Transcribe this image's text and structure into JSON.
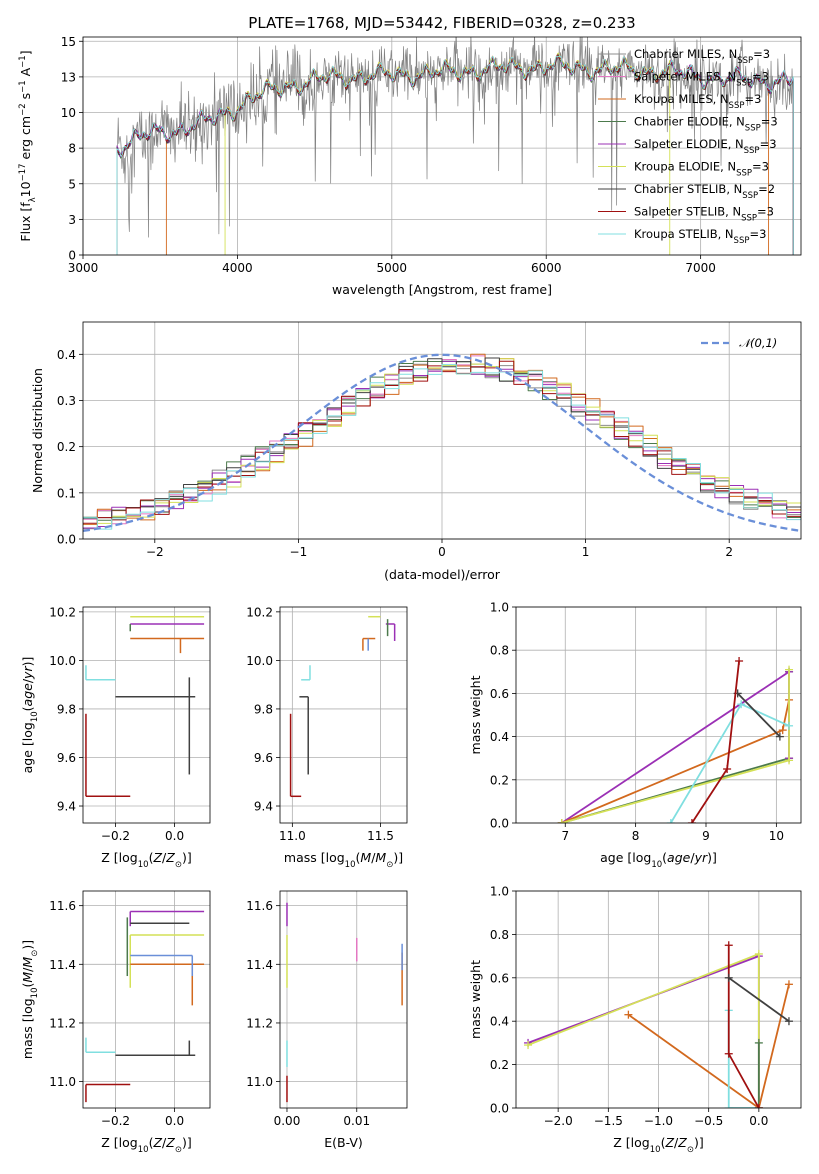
{
  "colors": {
    "Chabrier MILES": "#8c8c8c",
    "Salpeter MILES": "#e377c2",
    "Kroupa MILES": "#d2691e",
    "Chabrier ELODIE": "#4c7a4c",
    "Salpeter ELODIE": "#9b30b5",
    "Kroupa ELODIE": "#d4e157",
    "Chabrier STELIB": "#404040",
    "Salpeter STELIB": "#a01010",
    "Kroupa STELIB": "#80dfe0",
    "extra": "#6a8fd8"
  },
  "chart_data": [
    {
      "id": "spectrum",
      "type": "line",
      "title": "PLATE=1768, MJD=53442, FIBERID=0328, z=0.233",
      "xlabel": "wavelength [Angstrom, rest frame]",
      "ylabel": "Flux [fλ10⁻¹⁷ erg cm⁻² s⁻¹ A⁻¹]",
      "xlim": [
        3000,
        7650
      ],
      "ylim": [
        0,
        15.3
      ],
      "xticks": [
        3000,
        4000,
        5000,
        6000,
        7000
      ],
      "yticks": [
        0.0,
        2.5,
        5.0,
        7.5,
        10.0,
        12.5,
        15.0
      ],
      "legend_position": "right",
      "legend": [
        "Chabrier MILES, N_SSP=3",
        "Salpeter MILES, N_SSP=3",
        "Kroupa MILES, N_SSP=3",
        "Chabrier ELODIE, N_SSP=3",
        "Salpeter ELODIE, N_SSP=3",
        "Kroupa ELODIE, N_SSP=3",
        "Chabrier STELIB, N_SSP=2",
        "Salpeter STELIB, N_SSP=3",
        "Kroupa STELIB, N_SSP=3"
      ],
      "continuum": {
        "x": [
          3220,
          3300,
          3400,
          3500,
          3600,
          3700,
          3800,
          3900,
          4000,
          4100,
          4200,
          4300,
          4400,
          4500,
          4600,
          4800,
          5000,
          5200,
          5400,
          5600,
          5800,
          6000,
          6200,
          6400,
          6600,
          6800,
          7000,
          7200,
          7400
        ],
        "y": [
          7.5,
          7.9,
          8.3,
          8.6,
          8.7,
          9.0,
          9.3,
          9.8,
          10.4,
          11.0,
          11.4,
          11.8,
          12.0,
          12.2,
          12.4,
          12.5,
          12.6,
          12.7,
          12.8,
          13.0,
          13.1,
          13.2,
          13.1,
          13.0,
          12.9,
          12.8,
          12.5,
          12.3,
          12.2
        ]
      },
      "data_noise_amplitude": 1.4,
      "spectrum_starts": {
        "default": 3220,
        "Kroupa MILES": 3540,
        "Kroupa ELODIE": 3920
      },
      "spectrum_ends": {
        "default": 7600,
        "Kroupa ELODIE": 6800,
        "Kroupa MILES": 7440
      }
    },
    {
      "id": "residuals",
      "type": "histogram",
      "xlabel": "(data-model)/error",
      "ylabel": "Normed distribution",
      "xlim": [
        -2.5,
        2.5
      ],
      "ylim": [
        0,
        0.47
      ],
      "xticks": [
        -2,
        -1,
        0,
        1,
        2
      ],
      "yticks": [
        0.0,
        0.1,
        0.2,
        0.3,
        0.4
      ],
      "reference": {
        "name": "𝒩(0,1)",
        "mean": 0,
        "sigma": 1
      },
      "legend_position": "top-right",
      "bin_width": 0.1,
      "bin_start": -2.5
    },
    {
      "id": "age-vs-Z",
      "type": "errorbar",
      "xlabel": "Z [log₁₀(Z/Z⊙)]",
      "ylabel": "age  [log₁₀(age/yr)]",
      "xlim": [
        -0.31,
        0.12
      ],
      "ylim": [
        9.33,
        10.22
      ],
      "xticks": [
        -0.2,
        0.0
      ],
      "yticks": [
        9.4,
        9.6,
        9.8,
        10.0,
        10.2
      ],
      "points": [
        {
          "model": "Kroupa ELODIE",
          "x": -0.05,
          "xerr": [
            0.1,
            0.15
          ],
          "y": 10.18,
          "yerr": [
            0.0,
            0.0
          ]
        },
        {
          "model": "Salpeter ELODIE",
          "x": -0.15,
          "xerr": [
            0.0,
            0.25
          ],
          "y": 10.15,
          "yerr": [
            0.02,
            0.0
          ]
        },
        {
          "model": "Chabrier ELODIE",
          "x": -0.15,
          "xerr": [
            0.0,
            0.0
          ],
          "y": 10.15,
          "yerr": [
            0.03,
            0.0
          ]
        },
        {
          "model": "Kroupa MILES",
          "x": 0.02,
          "xerr": [
            0.17,
            0.08
          ],
          "y": 10.09,
          "yerr": [
            0.06,
            0.0
          ]
        },
        {
          "model": "Kroupa STELIB",
          "x": -0.3,
          "xerr": [
            0.0,
            0.1
          ],
          "y": 9.92,
          "yerr": [
            0.0,
            0.06
          ]
        },
        {
          "model": "Chabrier STELIB",
          "x": 0.05,
          "xerr": [
            0.25,
            0.02
          ],
          "y": 9.85,
          "yerr": [
            0.32,
            0.08
          ]
        },
        {
          "model": "Salpeter STELIB",
          "x": -0.3,
          "xerr": [
            0.0,
            0.15
          ],
          "y": 9.44,
          "yerr": [
            0.0,
            0.34
          ]
        }
      ]
    },
    {
      "id": "age-vs-mass",
      "type": "errorbar",
      "xlabel": "mass [log₁₀(M/M⊙)]",
      "ylabel": "",
      "xlim": [
        10.93,
        11.65
      ],
      "ylim": [
        9.33,
        10.22
      ],
      "xticks": [
        11.0,
        11.5
      ],
      "yticks": [
        9.4,
        9.6,
        9.8,
        10.0,
        10.2
      ],
      "points": [
        {
          "model": "Kroupa ELODIE",
          "x": 11.5,
          "xerr": [
            0.07,
            0.0
          ],
          "y": 10.18,
          "yerr": [
            0.0,
            0.0
          ]
        },
        {
          "model": "Salpeter ELODIE",
          "x": 11.58,
          "xerr": [
            0.05,
            0.0
          ],
          "y": 10.15,
          "yerr": [
            0.07,
            0.0
          ]
        },
        {
          "model": "Chabrier ELODIE",
          "x": 11.54,
          "xerr": [
            0.0,
            0.0
          ],
          "y": 10.15,
          "yerr": [
            0.05,
            0.02
          ]
        },
        {
          "model": "Kroupa MILES",
          "x": 11.4,
          "xerr": [
            0.0,
            0.07
          ],
          "y": 10.09,
          "yerr": [
            0.05,
            0.0
          ]
        },
        {
          "model": "extra",
          "x": 11.43,
          "xerr": [
            0.0,
            0.0
          ],
          "y": 10.09,
          "yerr": [
            0.05,
            0.0
          ]
        },
        {
          "model": "Kroupa STELIB",
          "x": 11.1,
          "xerr": [
            0.05,
            0.0
          ],
          "y": 9.92,
          "yerr": [
            0.0,
            0.06
          ]
        },
        {
          "model": "Chabrier STELIB",
          "x": 11.09,
          "xerr": [
            0.05,
            0.0
          ],
          "y": 9.85,
          "yerr": [
            0.32,
            0.0
          ]
        },
        {
          "model": "Salpeter STELIB",
          "x": 10.99,
          "xerr": [
            0.0,
            0.06
          ],
          "y": 9.44,
          "yerr": [
            0.0,
            0.34
          ]
        }
      ]
    },
    {
      "id": "mass-weight-vs-age",
      "type": "line",
      "xlabel": "age  [log₁₀(age/yr)]",
      "ylabel": "mass weight",
      "xlim": [
        6.3,
        10.35
      ],
      "ylim": [
        0,
        1.0
      ],
      "xticks": [
        7,
        8,
        9,
        10
      ],
      "yticks": [
        0.0,
        0.2,
        0.4,
        0.6,
        0.8,
        1.0
      ],
      "series": [
        {
          "model": "Chabrier ELODIE",
          "x": [
            6.95,
            10.18,
            10.18
          ],
          "y": [
            0.0,
            0.3,
            0.7
          ]
        },
        {
          "model": "Salpeter ELODIE",
          "x": [
            6.95,
            10.18,
            10.18
          ],
          "y": [
            0.0,
            0.7,
            0.3
          ]
        },
        {
          "model": "Kroupa MILES",
          "x": [
            6.95,
            10.09,
            10.18
          ],
          "y": [
            0.0,
            0.43,
            0.57
          ]
        },
        {
          "model": "Kroupa ELODIE",
          "x": [
            6.95,
            10.18,
            10.18
          ],
          "y": [
            0.0,
            0.29,
            0.71
          ]
        },
        {
          "model": "Kroupa STELIB",
          "x": [
            8.5,
            9.5,
            10.18
          ],
          "y": [
            0.0,
            0.55,
            0.45
          ]
        },
        {
          "model": "Chabrier STELIB",
          "x": [
            9.45,
            10.05
          ],
          "y": [
            0.6,
            0.4
          ]
        },
        {
          "model": "Salpeter STELIB",
          "x": [
            8.8,
            9.3,
            9.47
          ],
          "y": [
            0.0,
            0.25,
            0.75
          ]
        }
      ]
    },
    {
      "id": "mass-vs-Z",
      "type": "errorbar",
      "xlabel": "Z [log₁₀(Z/Z⊙)]",
      "ylabel": "mass [log₁₀(M/M⊙)]",
      "xlim": [
        -0.31,
        0.12
      ],
      "ylim": [
        10.91,
        11.65
      ],
      "xticks": [
        -0.2,
        0.0
      ],
      "yticks": [
        11.0,
        11.2,
        11.4,
        11.6
      ],
      "points": [
        {
          "model": "Salpeter ELODIE",
          "x": -0.15,
          "xerr": [
            0.0,
            0.25
          ],
          "y": 11.58,
          "yerr": [
            0.05,
            0.0
          ]
        },
        {
          "model": "Chabrier STELIB",
          "x": -0.15,
          "xerr": [
            0.0,
            0.2
          ],
          "y": 11.54,
          "yerr": [
            0.0,
            0.0
          ]
        },
        {
          "model": "Kroupa ELODIE",
          "x": -0.15,
          "xerr": [
            0.0,
            0.25
          ],
          "y": 11.5,
          "yerr": [
            0.18,
            0.0
          ]
        },
        {
          "model": "Kroupa MILES",
          "x": 0.06,
          "xerr": [
            0.21,
            0.04
          ],
          "y": 11.4,
          "yerr": [
            0.14,
            0.0
          ]
        },
        {
          "model": "extra",
          "x": 0.06,
          "xerr": [
            0.21,
            0.0
          ],
          "y": 11.43,
          "yerr": [
            0.07,
            0.0
          ]
        },
        {
          "model": "Chabrier ELODIE",
          "x": -0.16,
          "xerr": [
            0.0,
            0.0
          ],
          "y": 11.46,
          "yerr": [
            0.1,
            0.1
          ]
        },
        {
          "model": "Kroupa STELIB",
          "x": -0.3,
          "xerr": [
            0.0,
            0.1
          ],
          "y": 11.1,
          "yerr": [
            0.0,
            0.05
          ]
        },
        {
          "model": "Chabrier STELIB",
          "x": 0.05,
          "xerr": [
            0.25,
            0.02
          ],
          "y": 11.09,
          "yerr": [
            0.0,
            0.05
          ]
        },
        {
          "model": "Salpeter STELIB",
          "x": -0.3,
          "xerr": [
            0.0,
            0.15
          ],
          "y": 10.99,
          "yerr": [
            0.06,
            0.0
          ]
        }
      ]
    },
    {
      "id": "mass-vs-ebv",
      "type": "errorbar",
      "xlabel": "E(B-V)",
      "ylabel": "",
      "xlim": [
        -0.001,
        0.0172
      ],
      "ylim": [
        10.91,
        11.65
      ],
      "xticks": [
        0.0,
        0.01
      ],
      "yticks": [
        11.0,
        11.2,
        11.4,
        11.6
      ],
      "points": [
        {
          "model": "Salpeter ELODIE",
          "x": 0.0,
          "xerr": [
            0,
            0
          ],
          "y": 11.58,
          "yerr": [
            0.05,
            0.03
          ]
        },
        {
          "model": "Kroupa ELODIE",
          "x": 0.0,
          "xerr": [
            0,
            0
          ],
          "y": 11.45,
          "yerr": [
            0.13,
            0.05
          ]
        },
        {
          "model": "Salpeter MILES",
          "x": 0.01,
          "xerr": [
            0,
            0
          ],
          "y": 11.45,
          "yerr": [
            0.04,
            0.04
          ]
        },
        {
          "model": "Kroupa MILES",
          "x": 0.0165,
          "xerr": [
            0,
            0
          ],
          "y": 11.36,
          "yerr": [
            0.1,
            0.08
          ]
        },
        {
          "model": "extra",
          "x": 0.0165,
          "xerr": [
            0,
            0
          ],
          "y": 11.43,
          "yerr": [
            0.05,
            0.04
          ]
        },
        {
          "model": "Kroupa STELIB",
          "x": 0.0,
          "xerr": [
            0,
            0
          ],
          "y": 11.1,
          "yerr": [
            0.05,
            0.04
          ]
        },
        {
          "model": "Salpeter STELIB",
          "x": 0.0,
          "xerr": [
            0,
            0
          ],
          "y": 10.99,
          "yerr": [
            0.06,
            0.03
          ]
        }
      ]
    },
    {
      "id": "mass-weight-vs-Z",
      "type": "line",
      "xlabel": "Z [log₁₀(Z/Z⊙)]",
      "ylabel": "mass weight",
      "xlim": [
        -2.42,
        0.42
      ],
      "ylim": [
        0,
        1.0
      ],
      "xticks": [
        -2.0,
        -1.5,
        -1.0,
        -0.5,
        0.0
      ],
      "yticks": [
        0.0,
        0.2,
        0.4,
        0.6,
        0.8,
        1.0
      ],
      "series": [
        {
          "model": "Salpeter ELODIE",
          "x": [
            -2.3,
            0.0,
            0.0
          ],
          "y": [
            0.3,
            0.7,
            0.0
          ]
        },
        {
          "model": "Kroupa ELODIE",
          "x": [
            -2.3,
            0.0,
            0.0
          ],
          "y": [
            0.29,
            0.71,
            0.0
          ]
        },
        {
          "model": "Chabrier ELODIE",
          "x": [
            0.0,
            0.0
          ],
          "y": [
            0.0,
            0.3
          ]
        },
        {
          "model": "Kroupa MILES",
          "x": [
            -1.3,
            0.0,
            0.3
          ],
          "y": [
            0.43,
            0.0,
            0.57
          ]
        },
        {
          "model": "Kroupa STELIB",
          "x": [
            -0.3,
            -0.3,
            0.0
          ],
          "y": [
            0.45,
            0.0,
            0.0
          ]
        },
        {
          "model": "Salpeter STELIB",
          "x": [
            -0.3,
            -0.3,
            0.0
          ],
          "y": [
            0.75,
            0.25,
            0.0
          ]
        },
        {
          "model": "Chabrier STELIB",
          "x": [
            -0.3,
            0.3
          ],
          "y": [
            0.6,
            0.4
          ]
        }
      ]
    }
  ]
}
